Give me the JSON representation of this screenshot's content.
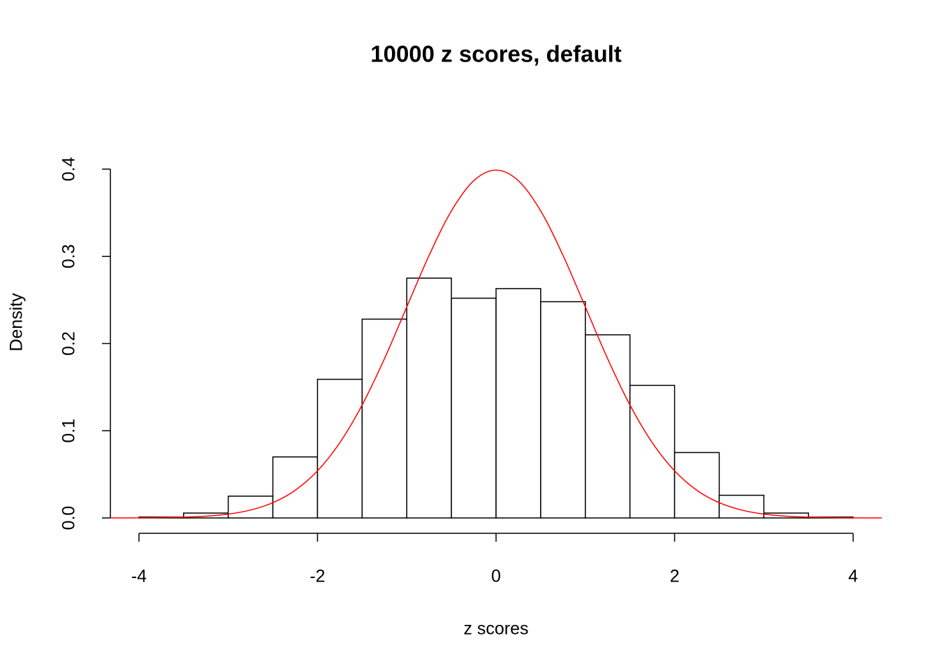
{
  "chart_data": {
    "type": "histogram",
    "title": "10000 z scores, default",
    "x_label": "z scores",
    "y_label": "Density",
    "bins": [
      -4,
      -3.5,
      -3,
      -2.5,
      -2,
      -1.5,
      -1,
      -0.5,
      0,
      0.5,
      1,
      1.5,
      2,
      2.5,
      3,
      3.5,
      4
    ],
    "values": [
      0.001,
      0.0056,
      0.025,
      0.07,
      0.159,
      0.228,
      0.275,
      0.252,
      0.263,
      0.248,
      0.21,
      0.152,
      0.075,
      0.026,
      0.0056,
      0.001
    ],
    "color": "#ffffff",
    "edgecolor": "#000000",
    "curve": {
      "color": "#ff0000",
      "x": [
        -4.32,
        -4,
        -3.75,
        -3.5,
        -3.25,
        -3,
        -2.75,
        -2.5,
        -2.25,
        -2,
        -1.75,
        -1.5,
        -1.25,
        -1,
        -0.75,
        -0.5,
        -0.25,
        0,
        0.25,
        0.5,
        0.75,
        1,
        1.25,
        1.5,
        1.75,
        2,
        2.25,
        2.5,
        2.75,
        3,
        3.25,
        3.5,
        3.75,
        4,
        4.32
      ],
      "values": [
        0,
        0.0001,
        0.0004,
        0.0009,
        0.002,
        0.0044,
        0.0091,
        0.0175,
        0.0317,
        0.054,
        0.0863,
        0.1295,
        0.1826,
        0.242,
        0.3011,
        0.3521,
        0.3867,
        0.3989,
        0.3867,
        0.3521,
        0.3011,
        0.242,
        0.1826,
        0.1295,
        0.0863,
        0.054,
        0.0317,
        0.0175,
        0.0091,
        0.0044,
        0.002,
        0.0009,
        0.0004,
        0.0001,
        0
      ]
    },
    "xlim": [
      -4.32,
      4.32
    ],
    "ylim": [
      -0.016,
      0.416
    ],
    "xticks": [
      -4,
      -2,
      0,
      2,
      4
    ],
    "yticks": [
      {
        "value": 0,
        "label": "0.0"
      },
      0.1,
      0.2,
      0.3,
      0.4
    ]
  }
}
